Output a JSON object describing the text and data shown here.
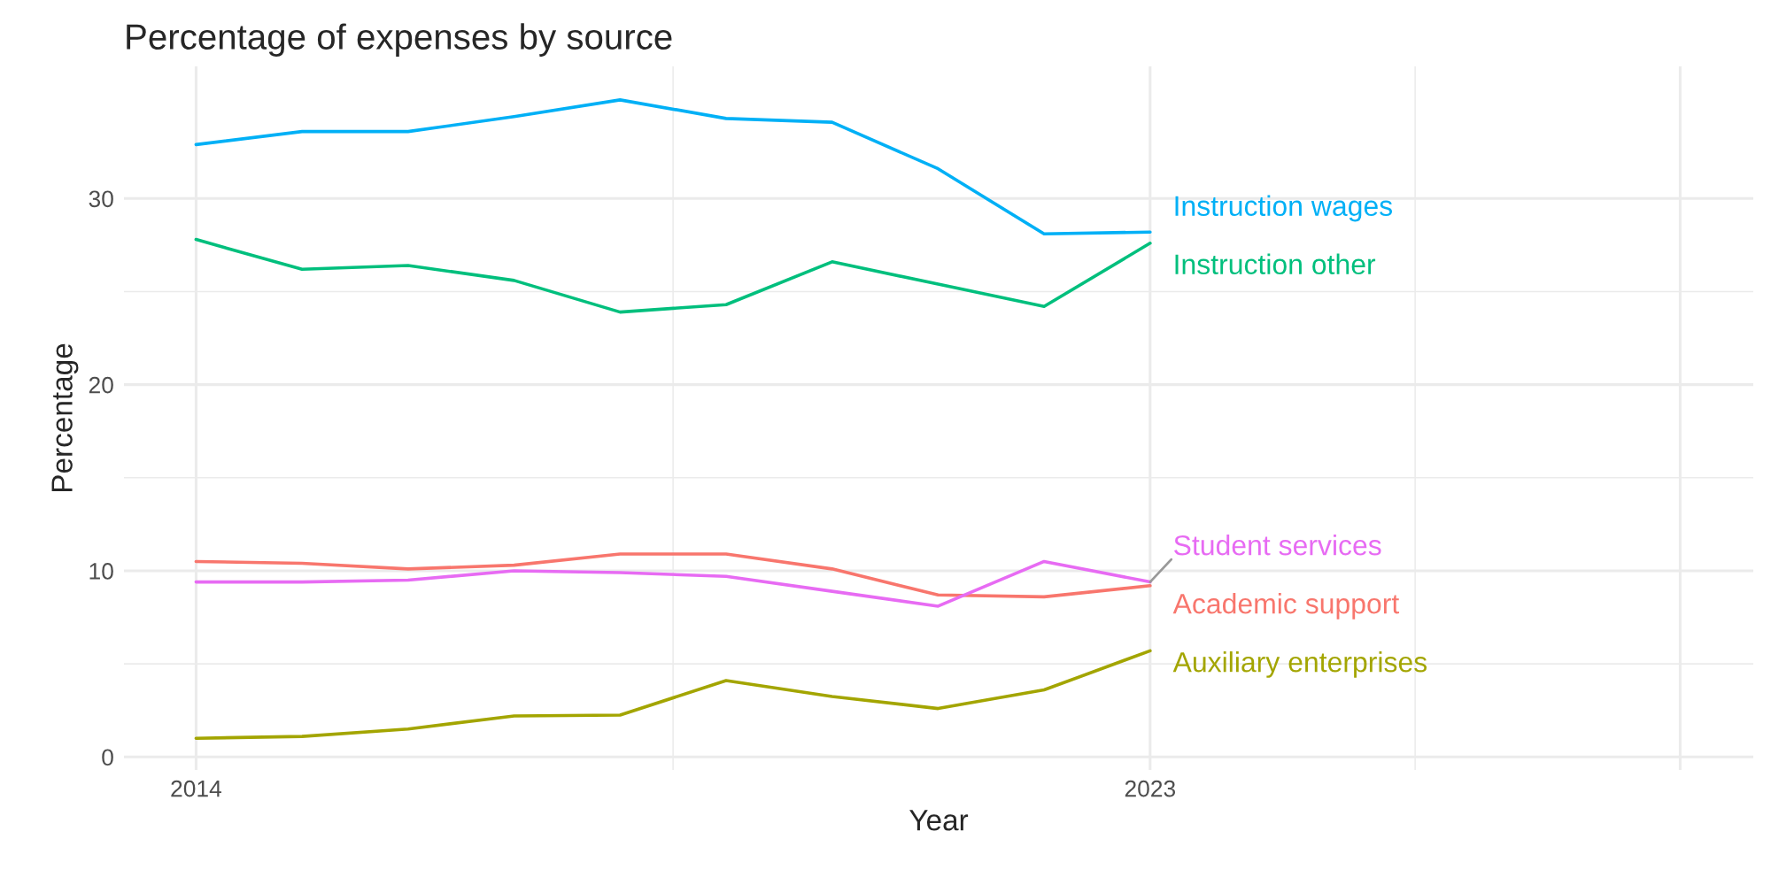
{
  "chart_data": {
    "type": "line",
    "title": "Percentage of expenses by source",
    "xlabel": "Year",
    "ylabel": "Percentage",
    "x": [
      2014,
      2015,
      2016,
      2017,
      2018,
      2019,
      2020,
      2021,
      2022,
      2023
    ],
    "series": [
      {
        "name": "Academic support",
        "color": "#f8766d",
        "values": [
          10.5,
          10.4,
          10.1,
          10.3,
          10.9,
          10.9,
          10.1,
          8.7,
          8.6,
          9.2
        ]
      },
      {
        "name": "Auxiliary enterprises",
        "color": "#a3a500",
        "values": [
          1.0,
          1.1,
          1.5,
          2.2,
          2.25,
          4.1,
          3.25,
          2.6,
          3.6,
          5.7
        ]
      },
      {
        "name": "Instruction other",
        "color": "#00bf7d",
        "values": [
          27.8,
          26.2,
          26.4,
          25.6,
          23.9,
          24.3,
          26.6,
          25.4,
          24.2,
          27.6
        ]
      },
      {
        "name": "Instruction wages",
        "color": "#00b0f6",
        "values": [
          32.9,
          33.6,
          33.6,
          34.4,
          35.3,
          34.3,
          34.1,
          31.6,
          28.1,
          28.2
        ]
      },
      {
        "name": "Student services",
        "color": "#e76bf3",
        "values": [
          9.4,
          9.4,
          9.5,
          10.0,
          9.9,
          9.7,
          8.9,
          8.1,
          10.5,
          9.4
        ]
      }
    ],
    "xlim": [
      2013.32,
      2028.69
    ],
    "ylim": [
      -0.7,
      37.1
    ],
    "xticks": [
      2014,
      2023,
      {
        "value": 2028,
        "label": null
      }
    ],
    "yticks": [
      0,
      10,
      20,
      30
    ],
    "grid": true,
    "legend": false,
    "line_style": "solid",
    "marker": "none"
  }
}
